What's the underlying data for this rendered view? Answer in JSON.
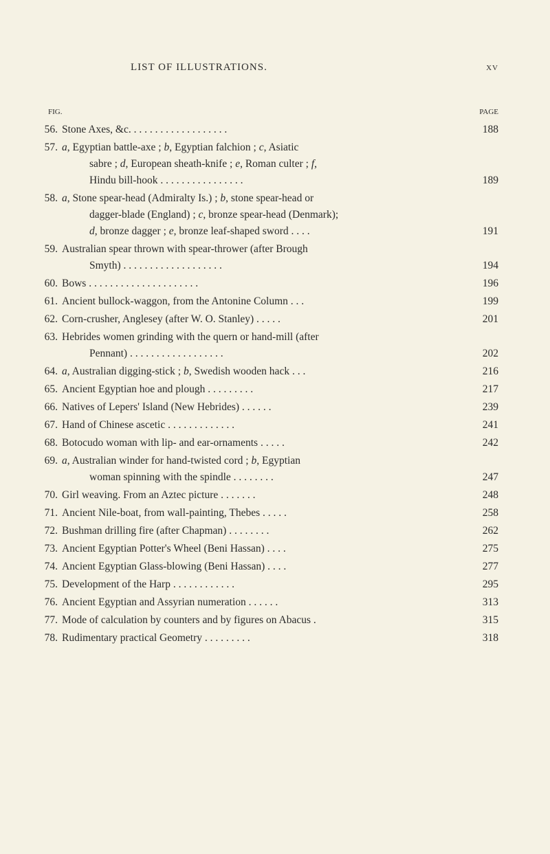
{
  "header": {
    "title": "LIST OF ILLUSTRATIONS.",
    "roman": "xv"
  },
  "subheader": {
    "fig": "FIG.",
    "page": "PAGE"
  },
  "entries": [
    {
      "num": "56.",
      "lines": [
        {
          "text": "Stone Axes, &c. . . . . . . . . . . . . . . . . . .",
          "page": "188"
        }
      ]
    },
    {
      "num": "57.",
      "lines": [
        {
          "text": "a, Egyptian battle-axe ; b, Egyptian falchion ; c, Asiatic",
          "page": ""
        },
        {
          "text": "sabre ; d, European sheath-knife ; e, Roman culter ; f,",
          "page": "",
          "indent": true
        },
        {
          "text": "Hindu bill-hook . . . . . . . . . . . . . . . .",
          "page": "189",
          "indent": true
        }
      ]
    },
    {
      "num": "58.",
      "lines": [
        {
          "text": "a, Stone spear-head (Admiralty Is.) ; b, stone spear-head or",
          "page": ""
        },
        {
          "text": "dagger-blade (England) ; c, bronze spear-head (Denmark);",
          "page": "",
          "indent": true
        },
        {
          "text": "d, bronze dagger ; e, bronze leaf-shaped sword . . . .",
          "page": "191",
          "indent": true
        }
      ]
    },
    {
      "num": "59.",
      "lines": [
        {
          "text": "Australian spear thrown with spear-thrower (after Brough",
          "page": ""
        },
        {
          "text": "Smyth) . . . . . . . . . . . . . . . . . . .",
          "page": "194",
          "indent": true
        }
      ]
    },
    {
      "num": "60.",
      "lines": [
        {
          "text": "Bows . . . . . . . . . . . . . . . . . . . . .",
          "page": "196"
        }
      ]
    },
    {
      "num": "61.",
      "lines": [
        {
          "text": "Ancient bullock-waggon, from the Antonine Column . . .",
          "page": "199"
        }
      ]
    },
    {
      "num": "62.",
      "lines": [
        {
          "text": "Corn-crusher, Anglesey (after W. O. Stanley) . . . . .",
          "page": "201"
        }
      ]
    },
    {
      "num": "63.",
      "lines": [
        {
          "text": "Hebrides women grinding with the quern or hand-mill (after",
          "page": ""
        },
        {
          "text": "Pennant) . . . . . . . . . . . . . . . . . .",
          "page": "202",
          "indent": true
        }
      ]
    },
    {
      "num": "64.",
      "lines": [
        {
          "text": "a, Australian digging-stick ; b, Swedish wooden hack . . .",
          "page": "216"
        }
      ]
    },
    {
      "num": "65.",
      "lines": [
        {
          "text": "Ancient Egyptian hoe and plough . . . . . . . . .",
          "page": "217"
        }
      ]
    },
    {
      "num": "66.",
      "lines": [
        {
          "text": "Natives of Lepers' Island (New Hebrides) . . . . . .",
          "page": "239"
        }
      ]
    },
    {
      "num": "67.",
      "lines": [
        {
          "text": "Hand of Chinese ascetic . . . . . . . . . . . . .",
          "page": "241"
        }
      ]
    },
    {
      "num": "68.",
      "lines": [
        {
          "text": "Botocudo woman with lip- and ear-ornaments . . . . .",
          "page": "242"
        }
      ]
    },
    {
      "num": "69.",
      "lines": [
        {
          "text": "a, Australian winder for hand-twisted cord ; b, Egyptian",
          "page": ""
        },
        {
          "text": "woman spinning with the spindle . . . . . . . .",
          "page": "247",
          "indent": true
        }
      ]
    },
    {
      "num": "70.",
      "lines": [
        {
          "text": "Girl weaving.  From an Aztec picture . . . . . . .",
          "page": "248"
        }
      ]
    },
    {
      "num": "71.",
      "lines": [
        {
          "text": "Ancient Nile-boat, from wall-painting, Thebes . . . . .",
          "page": "258"
        }
      ]
    },
    {
      "num": "72.",
      "lines": [
        {
          "text": "Bushman drilling fire (after Chapman) . . . . . . . .",
          "page": "262"
        }
      ]
    },
    {
      "num": "73.",
      "lines": [
        {
          "text": "Ancient Egyptian Potter's Wheel (Beni Hassan) . . . .",
          "page": "275"
        }
      ]
    },
    {
      "num": "74.",
      "lines": [
        {
          "text": "Ancient Egyptian Glass-blowing (Beni Hassan) . . . .",
          "page": "277"
        }
      ]
    },
    {
      "num": "75.",
      "lines": [
        {
          "text": "Development of the Harp . . . . . . . . . . . .",
          "page": "295"
        }
      ]
    },
    {
      "num": "76.",
      "lines": [
        {
          "text": "Ancient Egyptian and Assyrian numeration . . . . . .",
          "page": "313"
        }
      ]
    },
    {
      "num": "77.",
      "lines": [
        {
          "text": "Mode of calculation by counters and by figures on Abacus .",
          "page": "315"
        }
      ]
    },
    {
      "num": "78.",
      "lines": [
        {
          "text": "Rudimentary practical Geometry . . . . . . . . .",
          "page": "318"
        }
      ]
    }
  ]
}
